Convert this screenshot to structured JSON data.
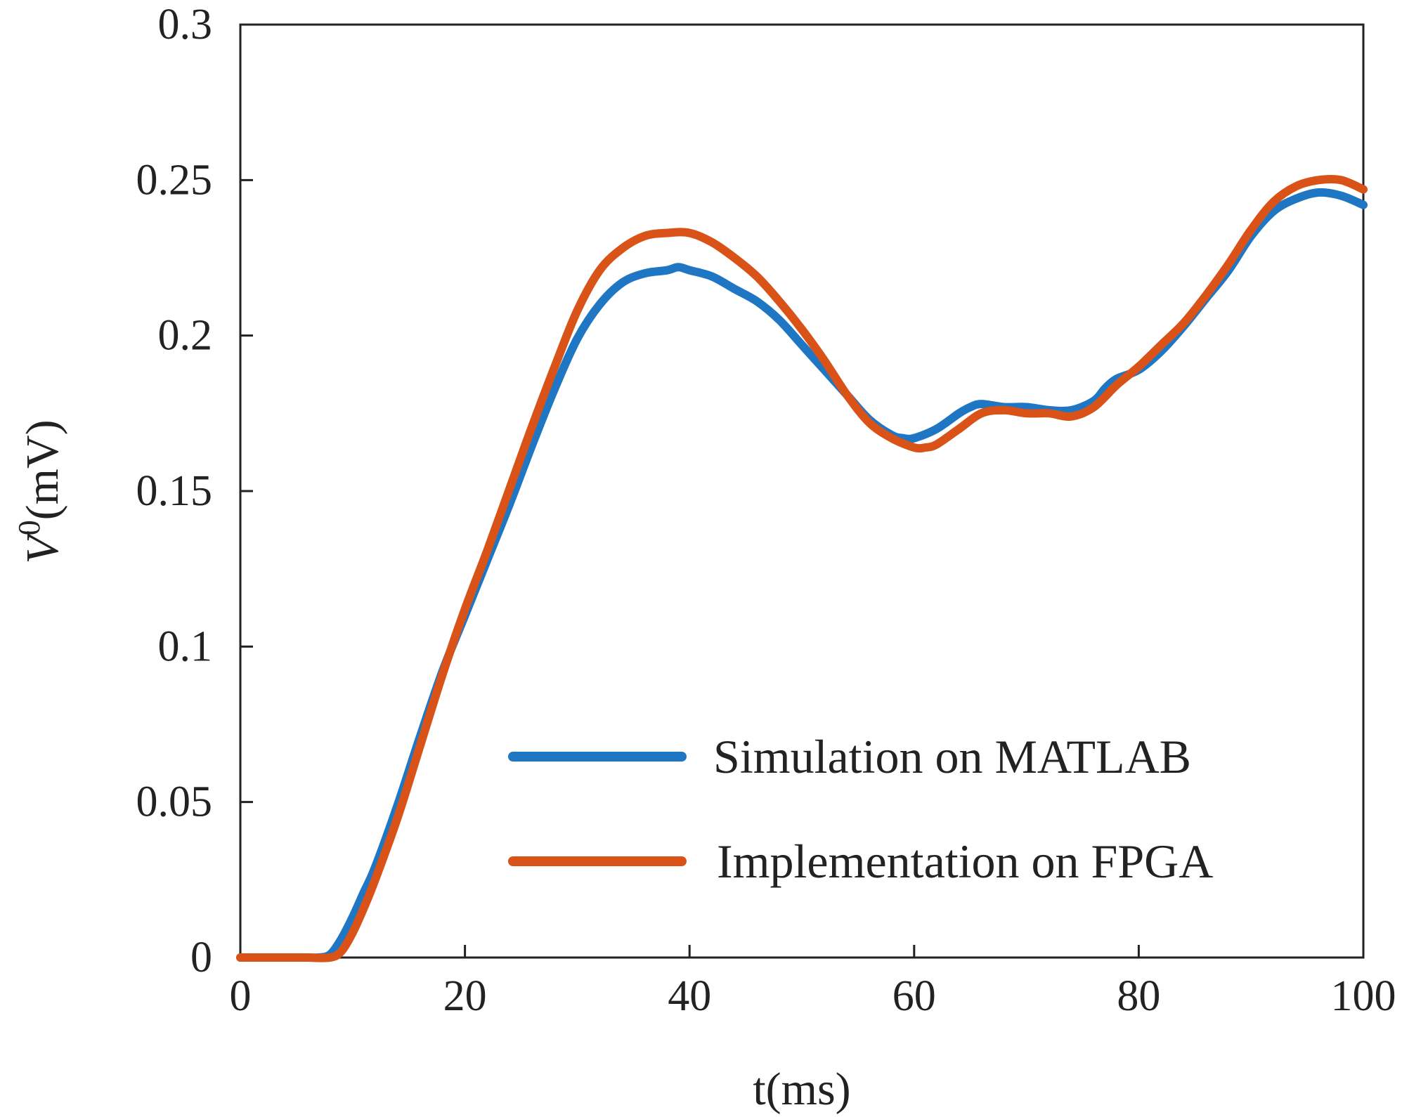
{
  "chart_data": {
    "type": "line",
    "title": "",
    "xlabel": "t(ms)",
    "ylabel_main": "V",
    "ylabel_sup": "0",
    "ylabel_unit": "(mV)",
    "xlim": [
      0,
      100
    ],
    "ylim": [
      0,
      0.3
    ],
    "xticks": [
      0,
      20,
      40,
      60,
      80,
      100
    ],
    "xtick_labels": [
      "0",
      "20",
      "40",
      "60",
      "80",
      "100"
    ],
    "yticks": [
      0,
      0.05,
      0.1,
      0.15,
      0.2,
      0.25,
      0.3
    ],
    "ytick_labels": [
      "0",
      "0.05",
      "0.1",
      "0.15",
      "0.2",
      "0.25",
      "0.3"
    ],
    "grid": false,
    "legend_position": "bottom-right",
    "series": [
      {
        "name": "Simulation on MATLAB",
        "color": "#1f77c4",
        "x": [
          0,
          2,
          4,
          6,
          7,
          8,
          9,
          10,
          11,
          12,
          14,
          16,
          18,
          20,
          22,
          24,
          26,
          28,
          30,
          32,
          34,
          36,
          38,
          39,
          40,
          42,
          44,
          46,
          48,
          50,
          52,
          54,
          56,
          58,
          59,
          60,
          62,
          64,
          65,
          66,
          68,
          70,
          72,
          74,
          76,
          77,
          78,
          80,
          82,
          84,
          86,
          88,
          90,
          92,
          94,
          96,
          98,
          100
        ],
        "y": [
          0,
          0,
          0,
          0,
          0,
          0.001,
          0.006,
          0.013,
          0.021,
          0.029,
          0.049,
          0.071,
          0.092,
          0.11,
          0.128,
          0.146,
          0.165,
          0.183,
          0.199,
          0.21,
          0.217,
          0.22,
          0.221,
          0.222,
          0.221,
          0.219,
          0.215,
          0.211,
          0.205,
          0.197,
          0.189,
          0.181,
          0.173,
          0.168,
          0.167,
          0.167,
          0.17,
          0.175,
          0.177,
          0.178,
          0.177,
          0.177,
          0.176,
          0.176,
          0.179,
          0.183,
          0.186,
          0.189,
          0.195,
          0.203,
          0.212,
          0.221,
          0.232,
          0.24,
          0.244,
          0.246,
          0.245,
          0.242
        ]
      },
      {
        "name": "Implementation on FPGA",
        "color": "#d95319",
        "x": [
          0,
          2,
          4,
          6,
          8,
          9,
          10,
          11,
          12,
          14,
          16,
          18,
          20,
          22,
          24,
          26,
          28,
          30,
          32,
          34,
          36,
          38,
          40,
          42,
          44,
          46,
          48,
          50,
          52,
          54,
          56,
          58,
          60,
          61,
          62,
          64,
          66,
          68,
          70,
          72,
          74,
          76,
          78,
          80,
          82,
          84,
          86,
          88,
          90,
          92,
          94,
          96,
          98,
          100
        ],
        "y": [
          0,
          0,
          0,
          0,
          0,
          0.002,
          0.008,
          0.016,
          0.025,
          0.045,
          0.068,
          0.091,
          0.112,
          0.131,
          0.151,
          0.171,
          0.19,
          0.208,
          0.221,
          0.228,
          0.232,
          0.233,
          0.233,
          0.23,
          0.225,
          0.219,
          0.211,
          0.202,
          0.192,
          0.181,
          0.172,
          0.167,
          0.164,
          0.164,
          0.165,
          0.17,
          0.175,
          0.176,
          0.175,
          0.175,
          0.174,
          0.177,
          0.184,
          0.19,
          0.197,
          0.204,
          0.213,
          0.223,
          0.234,
          0.243,
          0.248,
          0.25,
          0.25,
          0.247
        ]
      }
    ]
  }
}
